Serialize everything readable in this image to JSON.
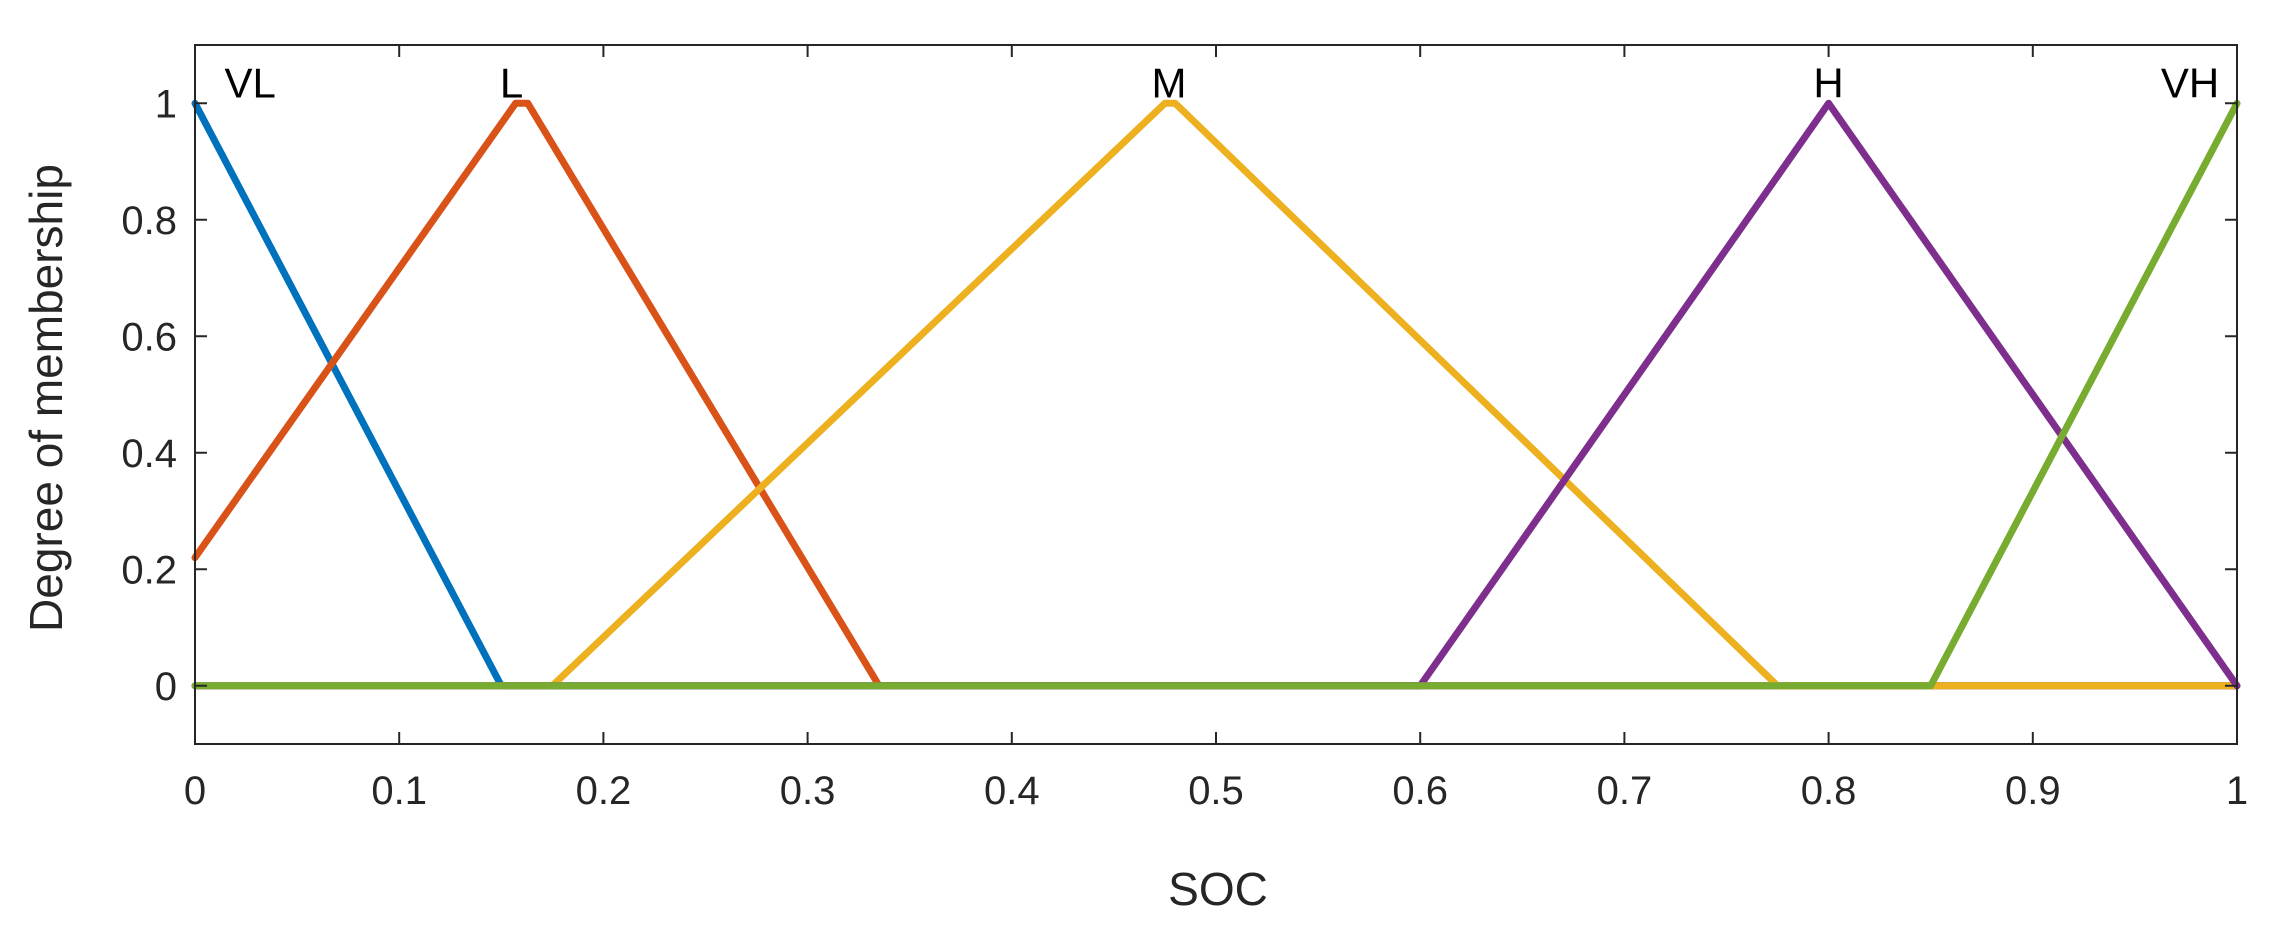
{
  "chart_data": {
    "type": "line",
    "title": "",
    "xlabel": "SOC",
    "ylabel": "Degree of membership",
    "xlim": [
      0,
      1
    ],
    "ylim": [
      -0.1,
      1.1
    ],
    "grid": false,
    "legend": "none",
    "xticks": [
      0,
      0.1,
      0.2,
      0.3,
      0.4,
      0.5,
      0.6,
      0.7,
      0.8,
      0.9,
      1
    ],
    "xtick_labels": [
      "0",
      "0.1",
      "0.2",
      "0.3",
      "0.4",
      "0.5",
      "0.6",
      "0.7",
      "0.8",
      "0.9",
      "1"
    ],
    "yticks": [
      0,
      0.2,
      0.4,
      0.6,
      0.8,
      1
    ],
    "ytick_labels": [
      "0",
      "0.2",
      "0.4",
      "0.6",
      "0.8",
      "1"
    ],
    "series": [
      {
        "name": "VL",
        "color": "#0072BD",
        "x": [
          0,
          0.15,
          1
        ],
        "y": [
          1,
          0,
          0
        ]
      },
      {
        "name": "L",
        "color": "#D95319",
        "x": [
          0,
          0.157,
          0.163,
          0.335,
          1
        ],
        "y": [
          0.22,
          1,
          1,
          0,
          0
        ]
      },
      {
        "name": "M",
        "color": "#EDB120",
        "x": [
          0,
          0.175,
          0.475,
          0.48,
          0.775,
          1
        ],
        "y": [
          0,
          0,
          1,
          1,
          0,
          0
        ]
      },
      {
        "name": "H",
        "color": "#7E2F8E",
        "x": [
          0,
          0.6,
          0.8,
          1
        ],
        "y": [
          0,
          0,
          1,
          0
        ]
      },
      {
        "name": "VH",
        "color": "#77AC30",
        "x": [
          0,
          0.85,
          1
        ],
        "y": [
          0,
          0,
          1
        ]
      }
    ],
    "annotations": [
      {
        "text": "VL",
        "x": 0.027,
        "y": 1.02
      },
      {
        "text": "L",
        "x": 0.155,
        "y": 1.02
      },
      {
        "text": "M",
        "x": 0.477,
        "y": 1.02
      },
      {
        "text": "H",
        "x": 0.8,
        "y": 1.02
      },
      {
        "text": "VH",
        "x": 0.977,
        "y": 1.02
      }
    ]
  }
}
